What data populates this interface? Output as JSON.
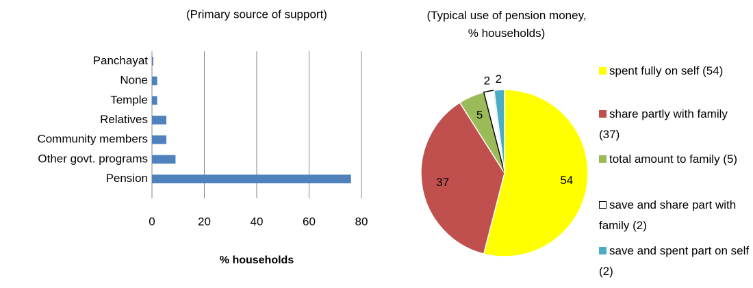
{
  "chart_data": [
    {
      "type": "bar",
      "orientation": "horizontal",
      "title": "(Primary source of support)",
      "x_label": "% households",
      "categories": [
        "Panchayat",
        "None",
        "Temple",
        "Relatives",
        "Community members",
        "Other govt. programs",
        "Pension"
      ],
      "values": [
        0.5,
        2,
        2,
        5.5,
        5.5,
        9,
        76
      ],
      "color": "#4f81bd",
      "xlim": [
        0,
        80
      ],
      "xticks": [
        0,
        20,
        40,
        60,
        80
      ],
      "grid": true
    },
    {
      "type": "pie",
      "title": "(Typical use of pension money, % households)",
      "categories": [
        "spent fully on self (54)",
        "share partly with family (37)",
        "total amount to family (5)",
        "save and share part with family (2)",
        "save and spent part on self (2)"
      ],
      "values": [
        54,
        37,
        5,
        2,
        2
      ],
      "colors": [
        "#ffff00",
        "#c0504d",
        "#9bbb59",
        "#ffffff",
        "#4bacc6"
      ],
      "legend": "right"
    }
  ]
}
